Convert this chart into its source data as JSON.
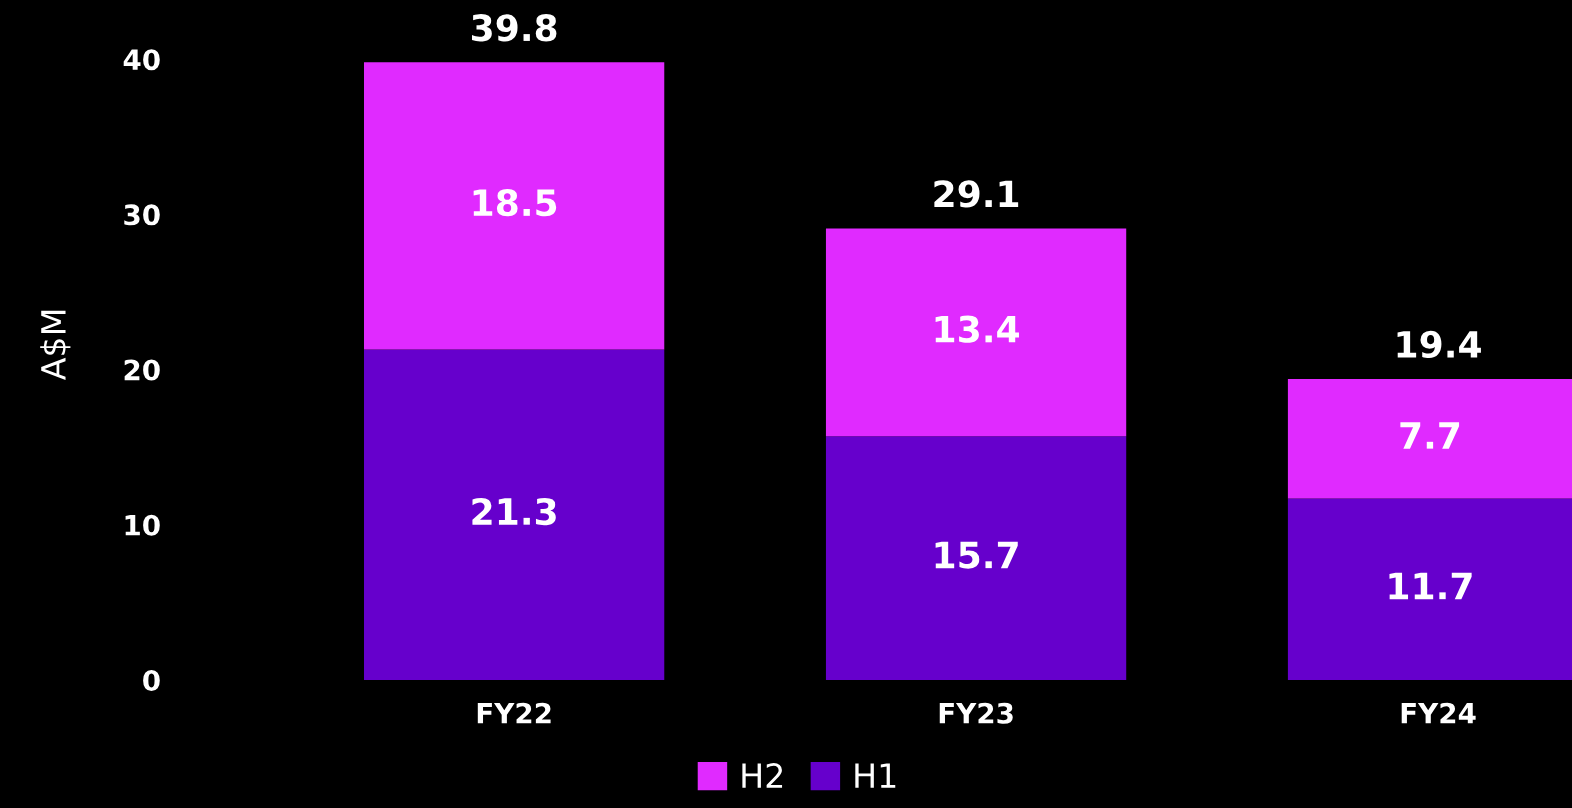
{
  "chart_data": {
    "type": "bar",
    "stacked": true,
    "ylabel": "A$M",
    "categories": [
      "FY22",
      "FY23",
      "FY24"
    ],
    "series": [
      {
        "name": "H1",
        "color": "#6600cc",
        "values": [
          21.3,
          15.7,
          11.7
        ]
      },
      {
        "name": "H2",
        "color": "#e02aff",
        "values": [
          18.5,
          13.4,
          7.7
        ]
      }
    ],
    "ylim": [
      0,
      43.3
    ],
    "yticks": [
      0,
      10,
      20,
      30,
      40
    ],
    "data_labels": true,
    "totals": [
      "39.8",
      "29.1",
      "19.4"
    ],
    "legend": "bottom",
    "grid": false
  }
}
